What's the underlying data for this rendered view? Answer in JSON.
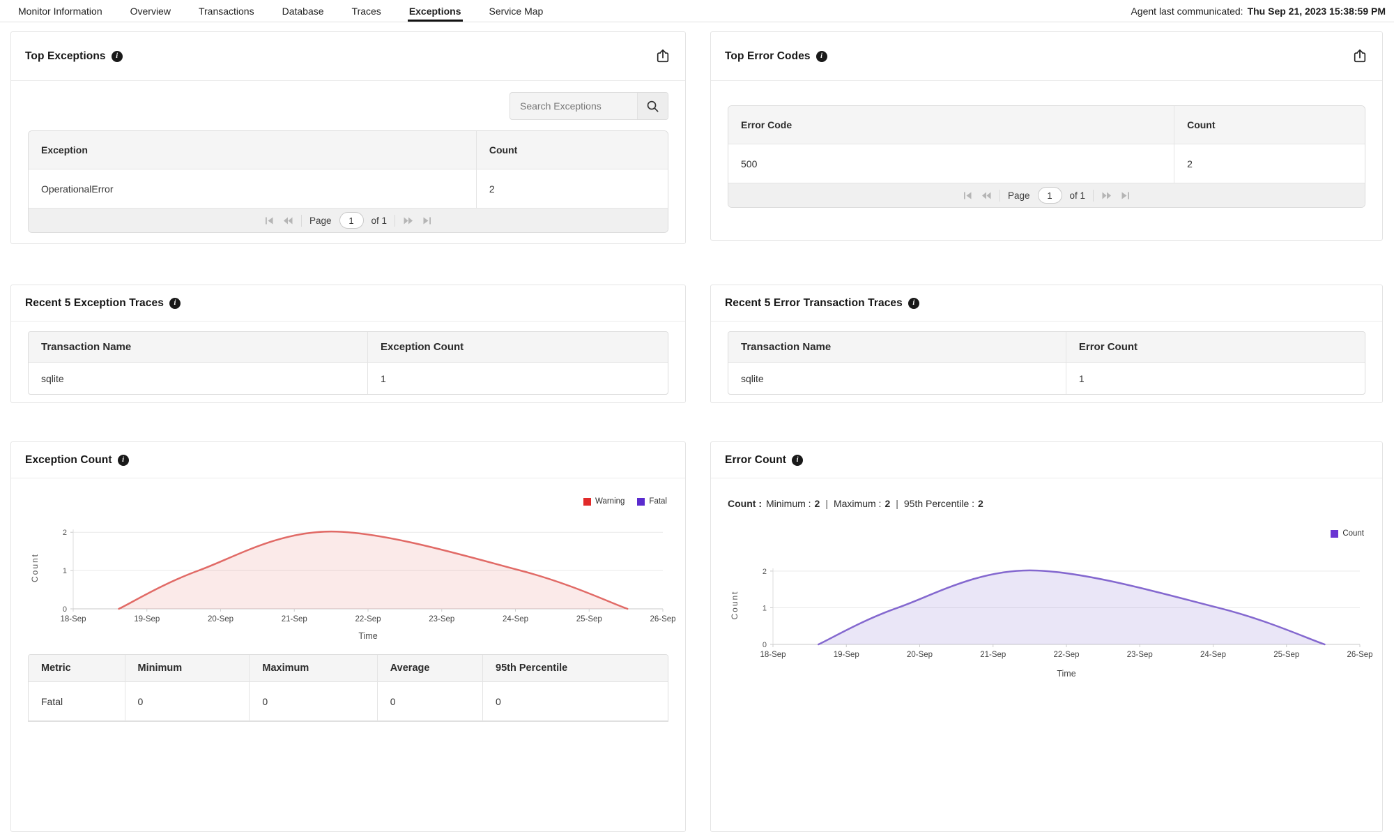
{
  "nav": {
    "tabs": [
      {
        "label": "Monitor Information"
      },
      {
        "label": "Overview"
      },
      {
        "label": "Transactions"
      },
      {
        "label": "Database"
      },
      {
        "label": "Traces"
      },
      {
        "label": "Exceptions"
      },
      {
        "label": "Service Map"
      }
    ],
    "active_tab": "Exceptions",
    "agent_label": "Agent last communicated:",
    "agent_value": "Thu Sep 21, 2023 15:38:59 PM"
  },
  "panels": {
    "top_exceptions": {
      "title": "Top Exceptions",
      "search_placeholder": "Search Exceptions",
      "columns": [
        "Exception",
        "Count"
      ],
      "rows": [
        [
          "OperationalError",
          "2"
        ]
      ],
      "pagination": {
        "page_label": "Page",
        "page_value": "1",
        "of_label": "of 1"
      }
    },
    "top_error_codes": {
      "title": "Top Error Codes",
      "columns": [
        "Error Code",
        "Count"
      ],
      "rows": [
        [
          "500",
          "2"
        ]
      ],
      "pagination": {
        "page_label": "Page",
        "page_value": "1",
        "of_label": "of 1"
      }
    },
    "recent_exception_traces": {
      "title": "Recent 5 Exception Traces",
      "columns": [
        "Transaction Name",
        "Exception Count"
      ],
      "rows": [
        [
          "sqlite",
          "1"
        ]
      ]
    },
    "recent_error_traces": {
      "title": "Recent 5 Error Transaction Traces",
      "columns": [
        "Transaction Name",
        "Error Count"
      ],
      "rows": [
        [
          "sqlite",
          "1"
        ]
      ]
    },
    "exception_count": {
      "title": "Exception Count",
      "stats_table": {
        "columns": [
          "Metric",
          "Minimum",
          "Maximum",
          "Average",
          "95th Percentile"
        ],
        "rows": [
          [
            "Fatal",
            "0",
            "0",
            "0",
            "0"
          ]
        ]
      }
    },
    "error_count": {
      "title": "Error Count",
      "stats_line": {
        "prefix": "Count :",
        "divider": "|",
        "items": [
          {
            "label": "Minimum :",
            "value": "2"
          },
          {
            "label": "Maximum :",
            "value": "2"
          },
          {
            "label": "95th Percentile :",
            "value": "2"
          }
        ]
      }
    }
  },
  "chart_data": [
    {
      "type": "area",
      "title": "Exception Count",
      "xlabel": "Time",
      "ylabel": "Count",
      "x_labels": [
        "18-Sep",
        "19-Sep",
        "20-Sep",
        "21-Sep",
        "22-Sep",
        "23-Sep",
        "24-Sep",
        "25-Sep",
        "26-Sep"
      ],
      "x_range": [
        0,
        8
      ],
      "ylim": [
        0,
        2.15
      ],
      "yticks": [
        0,
        1,
        2
      ],
      "grid": true,
      "legend_position": "top-right",
      "series": [
        {
          "name": "Warning",
          "legend_color": "#e12a2a",
          "stroke": "#e16a66",
          "fill": "rgba(225,104,100,0.14)",
          "points": [
            [
              0.62,
              0
            ],
            [
              1.7,
              1
            ],
            [
              3.5,
              2.02
            ],
            [
              6.07,
              1
            ],
            [
              7.52,
              0
            ]
          ]
        },
        {
          "name": "Fatal",
          "legend_color": "#5a2bce",
          "stroke": "#5a2bce",
          "fill": "none",
          "points": [
            [
              0,
              0
            ],
            [
              8,
              0
            ]
          ]
        }
      ]
    },
    {
      "type": "area",
      "title": "Error Count",
      "xlabel": "Time",
      "ylabel": "Count",
      "x_labels": [
        "18-Sep",
        "19-Sep",
        "20-Sep",
        "21-Sep",
        "22-Sep",
        "23-Sep",
        "24-Sep",
        "25-Sep",
        "26-Sep"
      ],
      "x_range": [
        0,
        8
      ],
      "ylim": [
        0,
        2.15
      ],
      "yticks": [
        0,
        1,
        2
      ],
      "grid": true,
      "legend_position": "top-right",
      "series": [
        {
          "name": "Count",
          "legend_color": "#6a35d2",
          "stroke": "#8468cf",
          "fill": "rgba(132,104,207,0.17)",
          "points": [
            [
              0.62,
              0
            ],
            [
              1.7,
              1
            ],
            [
              3.5,
              2.02
            ],
            [
              6.07,
              1
            ],
            [
              7.52,
              0
            ]
          ]
        }
      ]
    }
  ]
}
